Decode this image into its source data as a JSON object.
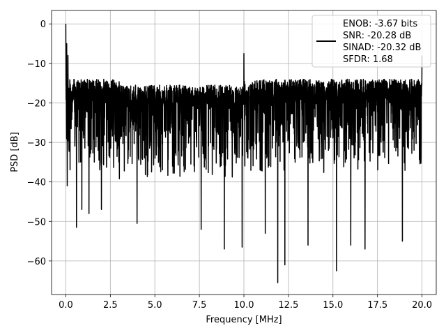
{
  "chart_data": {
    "type": "line",
    "title": "",
    "xlabel": "Frequency [MHz]",
    "ylabel": "PSD [dB]",
    "xlim": [
      -0.8,
      20.8
    ],
    "ylim": [
      -68.5,
      3.4
    ],
    "x_ticks": [
      0.0,
      2.5,
      5.0,
      7.5,
      10.0,
      12.5,
      15.0,
      17.5,
      20.0
    ],
    "x_tick_labels": [
      "0.0",
      "2.5",
      "5.0",
      "7.5",
      "10.0",
      "12.5",
      "15.0",
      "17.5",
      "20.0"
    ],
    "y_ticks": [
      0,
      -10,
      -20,
      -30,
      -40,
      -50,
      -60
    ],
    "y_tick_labels": [
      "0",
      "−10",
      "−20",
      "−30",
      "−40",
      "−50",
      "−60"
    ],
    "grid": true,
    "legend_position": "top-right",
    "line_color": "#000000",
    "series": [
      {
        "name": "ENOB: -3.67 bits\nSNR: -20.28 dB\nSINAD: -20.32 dB\nSFDR: 1.68",
        "noise_floor": {
          "x_start": 0.0,
          "x_end": 20.0,
          "upper_envelope": -14,
          "center": -26,
          "typical_min": -38
        },
        "peaks": [
          {
            "x": 0.0,
            "y": 0.0
          },
          {
            "x": 0.05,
            "y": -5
          },
          {
            "x": 0.12,
            "y": -8
          },
          {
            "x": 10.0,
            "y": -7.5
          },
          {
            "x": 20.0,
            "y": -8
          }
        ],
        "dips": [
          {
            "x": 0.08,
            "y": -41
          },
          {
            "x": 0.6,
            "y": -51.5
          },
          {
            "x": 0.9,
            "y": -47
          },
          {
            "x": 1.3,
            "y": -48
          },
          {
            "x": 2.0,
            "y": -47
          },
          {
            "x": 4.0,
            "y": -50.5
          },
          {
            "x": 7.6,
            "y": -52
          },
          {
            "x": 8.9,
            "y": -57
          },
          {
            "x": 9.9,
            "y": -56.5
          },
          {
            "x": 11.2,
            "y": -53
          },
          {
            "x": 11.9,
            "y": -65.5
          },
          {
            "x": 12.3,
            "y": -61
          },
          {
            "x": 13.6,
            "y": -56
          },
          {
            "x": 15.2,
            "y": -62.5
          },
          {
            "x": 16.0,
            "y": -56
          },
          {
            "x": 16.8,
            "y": -57
          },
          {
            "x": 18.9,
            "y": -55
          }
        ]
      }
    ]
  },
  "legend": {
    "lines": [
      "ENOB: -3.67 bits",
      "SNR: -20.28 dB",
      "SINAD: -20.32 dB",
      "SFDR: 1.68"
    ]
  }
}
